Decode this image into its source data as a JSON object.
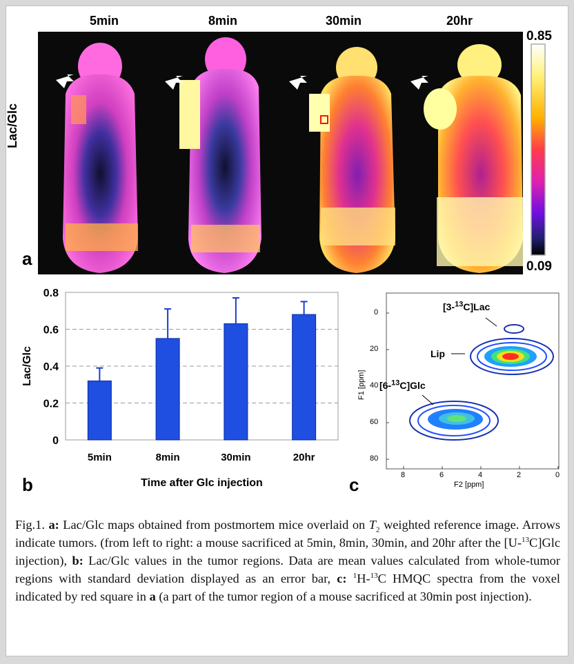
{
  "panel_a": {
    "time_labels": [
      "5min",
      "8min",
      "30min",
      "20hr"
    ],
    "ylabel": "Lac/Glc",
    "colorbar": {
      "max_label": "0.85",
      "min_label": "0.09"
    },
    "panel_letter": "a"
  },
  "panel_b": {
    "panel_letter": "b"
  },
  "panel_c": {
    "panel_letter": "c",
    "ylabel": "F1 [ppm]",
    "xlabel": "F2 [ppm]",
    "yticks": [
      "0",
      "20",
      "40",
      "60",
      "80"
    ],
    "xticks": [
      "8",
      "6",
      "4",
      "2",
      "0"
    ],
    "annotations": {
      "lac_prefix": "[3-",
      "lac_sup": "13",
      "lac_suffix": "C]Lac",
      "lip": "Lip",
      "glc_prefix": "[6-",
      "glc_sup": "13",
      "glc_suffix": "C]Glc"
    }
  },
  "chart_data": {
    "type": "bar",
    "categories": [
      "5min",
      "8min",
      "30min",
      "20hr"
    ],
    "values": [
      0.32,
      0.55,
      0.63,
      0.68
    ],
    "errors": [
      0.07,
      0.16,
      0.14,
      0.07
    ],
    "xlabel": "Time after Glc injection",
    "ylabel": "Lac/Glc",
    "ylim": [
      0,
      0.8
    ],
    "yticks": [
      "0",
      "0.2",
      "0.4",
      "0.6",
      "0.8"
    ],
    "grid": "dashed horizontal",
    "bar_color": "#1f4fe0"
  },
  "caption": {
    "fig_label": "Fig.1. ",
    "a_label": "a:",
    "t_var": "T",
    "t_sub": "2",
    "text_a": " Lac/Glc maps obtained from postmortem mice overlaid on ",
    "text_a2": " weighted reference image. Arrows indicate tumors. (from left to right: a mouse sacrificed at 5min, 8min, 30min, and 20hr after the [U-",
    "u_sup": "13",
    "text_a3": "C]Glc injection), ",
    "b_label": "b:",
    "text_b": " Lac/Glc values in the tumor regions. Data are mean values calculated from whole-tumor regions with standard deviation displayed as an error bar, ",
    "c_label": "c:",
    "h_sup": "1",
    "text_c1": "H-",
    "c_sup": "13",
    "text_c2": "C HMQC spectra from the voxel indicated by red square in ",
    "a_ref": "a",
    "text_c3": " (a part of the tumor region of a mouse sacrificed at 30min post injection)."
  }
}
